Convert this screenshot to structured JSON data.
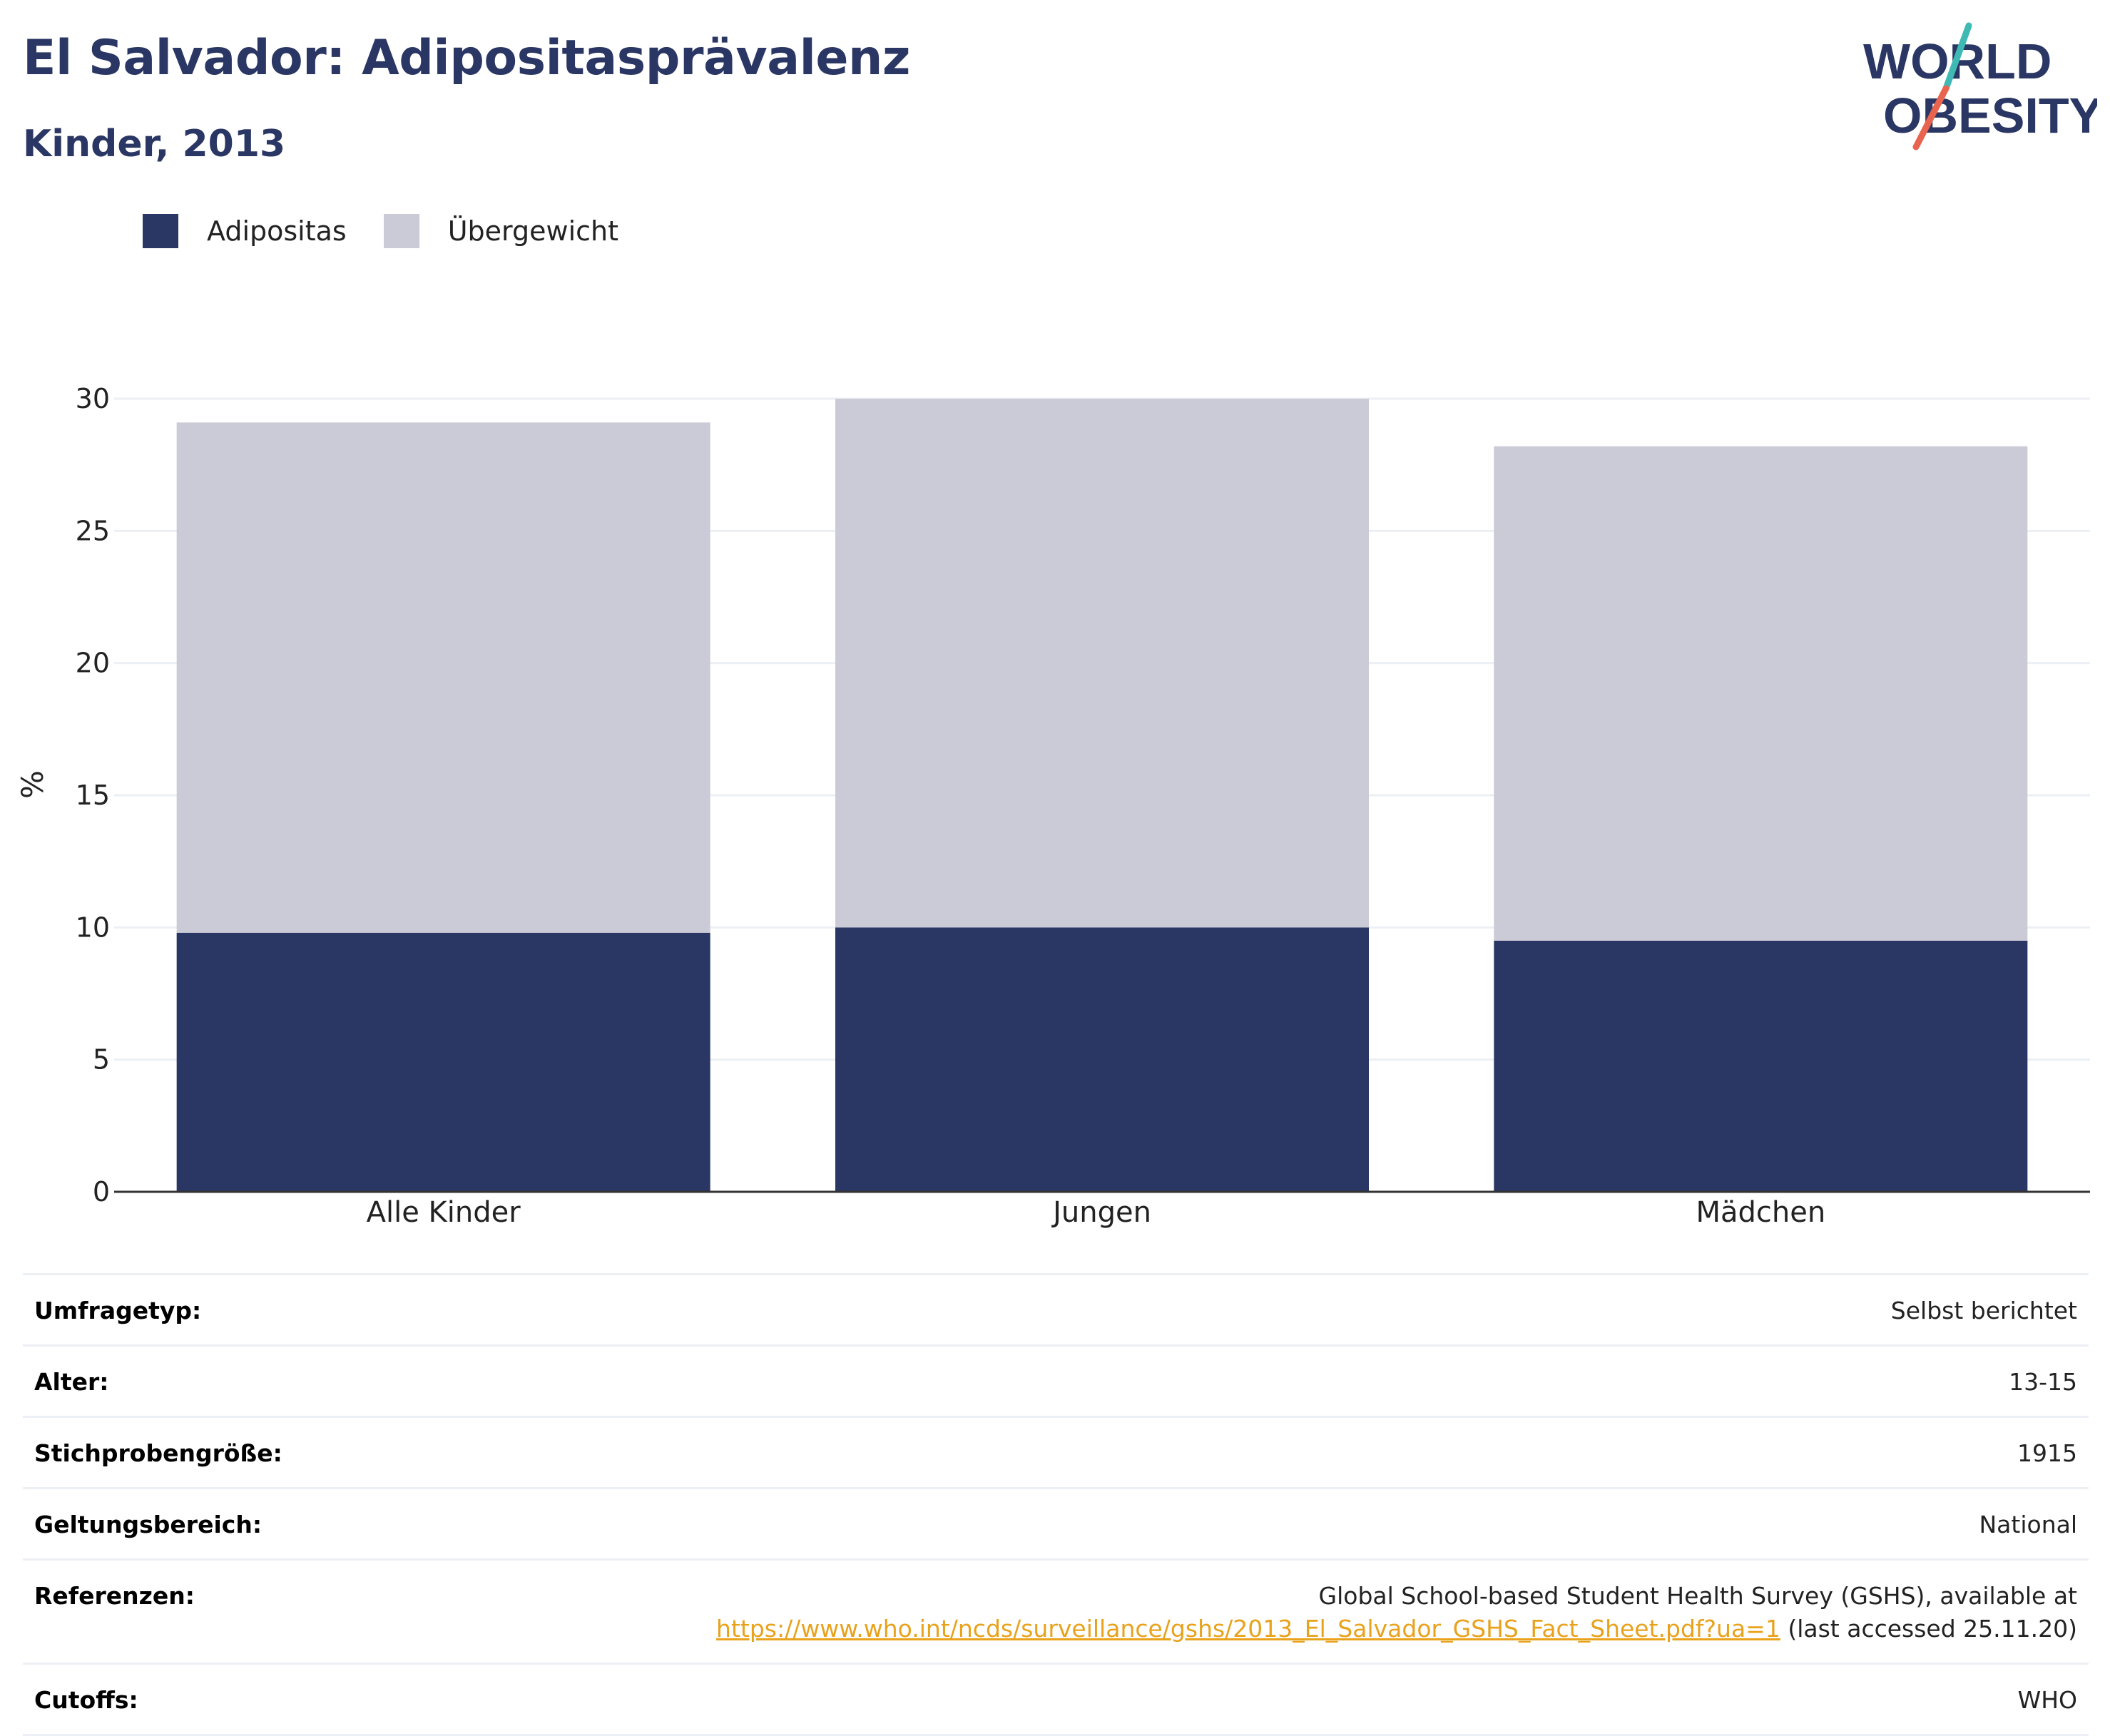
{
  "header": {
    "title": "El Salvador: Adipositasprävalenz",
    "subtitle": "Kinder, 2013"
  },
  "logo": {
    "line1": "WORLD",
    "line2": "OBESITY",
    "colors": {
      "text": "#2a3663",
      "slash_top": "#3fb9b4",
      "slash_bottom": "#e8644f"
    }
  },
  "colors": {
    "adipositas": "#2a3663",
    "uebergewicht": "#cacbd6",
    "grid": "#eceff4",
    "axis": "#333333",
    "link": "#e8a21c"
  },
  "chart_data": {
    "type": "bar",
    "stacked": true,
    "categories": [
      "Alle Kinder",
      "Jungen",
      "Mädchen"
    ],
    "series": [
      {
        "name": "Adipositas",
        "values": [
          9.8,
          10.0,
          9.5
        ]
      },
      {
        "name": "Übergewicht",
        "values": [
          19.3,
          20.0,
          18.7
        ]
      }
    ],
    "totals": [
      29.1,
      30.0,
      28.2
    ],
    "ylabel": "%",
    "xlabel": "",
    "ylim": [
      0,
      30
    ],
    "yticks": [
      0,
      5,
      10,
      15,
      20,
      25,
      30
    ],
    "grid": true,
    "legend": "top-left"
  },
  "info": {
    "rows": [
      {
        "key": "Umfragetyp:",
        "value": "Selbst berichtet"
      },
      {
        "key": "Alter:",
        "value": "13-15"
      },
      {
        "key": "Stichprobengröße:",
        "value": "1915"
      },
      {
        "key": "Geltungsbereich:",
        "value": "National"
      },
      {
        "key": "Referenzen:",
        "value": "Global School-based Student Health Survey (GSHS), available at",
        "link": "https://www.who.int/ncds/surveillance/gshs/2013_El_Salvador_GSHS_Fact_Sheet.pdf?ua=1",
        "suffix": " (last accessed 25.11.20)"
      },
      {
        "key": "Cutoffs:",
        "value": "WHO"
      }
    ]
  }
}
